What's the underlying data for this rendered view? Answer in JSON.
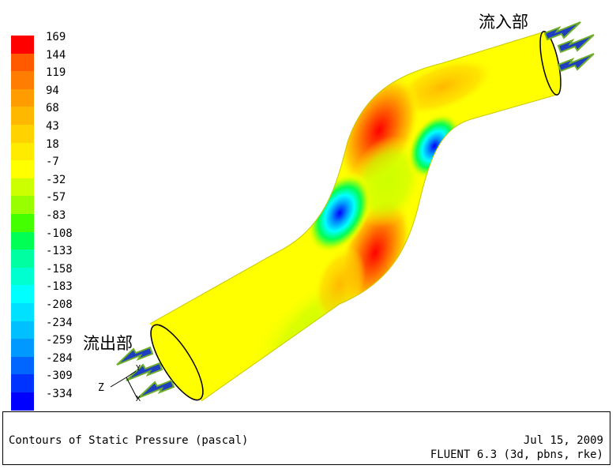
{
  "legend": {
    "labels": [
      "169",
      "144",
      "119",
      "94",
      "68",
      "43",
      "18",
      "-7",
      "-32",
      "-57",
      "-83",
      "-108",
      "-133",
      "-158",
      "-183",
      "-208",
      "-234",
      "-259",
      "-284",
      "-309",
      "-334"
    ],
    "colors": [
      "#ff0000",
      "#ff5a00",
      "#ff7d00",
      "#ff9d00",
      "#ffb800",
      "#ffd200",
      "#ffeb00",
      "#ffff00",
      "#ccff00",
      "#99ff00",
      "#44ff00",
      "#00ff55",
      "#00ffa0",
      "#00ffd0",
      "#00ffff",
      "#00e0ff",
      "#00c0ff",
      "#0099ff",
      "#0066ff",
      "#0033ff",
      "#0000ff"
    ]
  },
  "annotations": {
    "inlet_label": "流入部",
    "outlet_label": "流出部"
  },
  "axes": {
    "x": "X",
    "y": "Y",
    "z": "Z"
  },
  "colors": {
    "arrow_fill": "#1f3fbf",
    "arrow_border": "#6fae2a",
    "pipe_base": "#ffff00"
  },
  "footer": {
    "title": "Contours of Static Pressure (pascal)",
    "date": "Jul 15, 2009",
    "solver": "FLUENT 6.3 (3d, pbns, rke)"
  }
}
